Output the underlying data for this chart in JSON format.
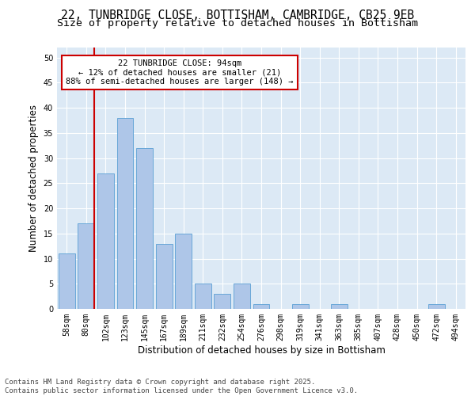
{
  "title_line1": "22, TUNBRIDGE CLOSE, BOTTISHAM, CAMBRIDGE, CB25 9EB",
  "title_line2": "Size of property relative to detached houses in Bottisham",
  "xlabel": "Distribution of detached houses by size in Bottisham",
  "ylabel": "Number of detached properties",
  "categories": [
    "58sqm",
    "80sqm",
    "102sqm",
    "123sqm",
    "145sqm",
    "167sqm",
    "189sqm",
    "211sqm",
    "232sqm",
    "254sqm",
    "276sqm",
    "298sqm",
    "319sqm",
    "341sqm",
    "363sqm",
    "385sqm",
    "407sqm",
    "428sqm",
    "450sqm",
    "472sqm",
    "494sqm"
  ],
  "values": [
    11,
    17,
    27,
    38,
    32,
    13,
    15,
    5,
    3,
    5,
    1,
    0,
    1,
    0,
    1,
    0,
    0,
    0,
    0,
    1,
    0
  ],
  "bar_color": "#aec6e8",
  "bar_edgecolor": "#5a9fd4",
  "vline_color": "#cc0000",
  "vline_xindex": 1,
  "annotation_text": "22 TUNBRIDGE CLOSE: 94sqm\n← 12% of detached houses are smaller (21)\n88% of semi-detached houses are larger (148) →",
  "annotation_box_edgecolor": "#cc0000",
  "annotation_box_facecolor": "white",
  "ylim": [
    0,
    52
  ],
  "yticks": [
    0,
    5,
    10,
    15,
    20,
    25,
    30,
    35,
    40,
    45,
    50
  ],
  "background_color": "#dce9f5",
  "grid_color": "white",
  "footer": "Contains HM Land Registry data © Crown copyright and database right 2025.\nContains public sector information licensed under the Open Government Licence v3.0.",
  "title_fontsize": 10.5,
  "subtitle_fontsize": 9.5,
  "axis_label_fontsize": 8.5,
  "tick_fontsize": 7,
  "annotation_fontsize": 7.5,
  "footer_fontsize": 6.5
}
